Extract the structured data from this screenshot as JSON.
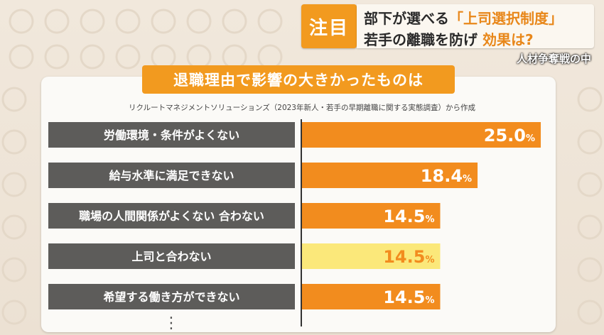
{
  "header": {
    "tag": "注目",
    "line1_prefix": "部下が選べる",
    "line1_highlight": "「上司選択制度」",
    "line2_prefix": "若手の離職を防げ",
    "line2_highlight": "効果は?",
    "sub_caption": "人材争奪戦の中"
  },
  "colors": {
    "accent": "#f29a1f",
    "bar": "#f28c1e",
    "bar_highlight": "#fbe87a",
    "label_box": "#5d5c5a"
  },
  "chart_data": {
    "type": "bar",
    "title": "退職理由で影響の大きかったものは",
    "source": "リクルートマネジメントソリューションズ（2023年新人・若手の早期離職に関する実態調査）から作成",
    "categories": [
      "労働環境・条件がよくない",
      "給与水準に満足できない",
      "職場の人間関係がよくない 合わない",
      "上司と合わない",
      "希望する働き方ができない"
    ],
    "values": [
      25.0,
      18.4,
      14.5,
      14.5,
      14.5
    ],
    "value_labels": [
      "25.0",
      "18.4",
      "14.5",
      "14.5",
      "14.5"
    ],
    "unit": "%",
    "highlight_index": 3,
    "xlim": [
      0,
      27
    ],
    "more_marker": "⋮"
  }
}
